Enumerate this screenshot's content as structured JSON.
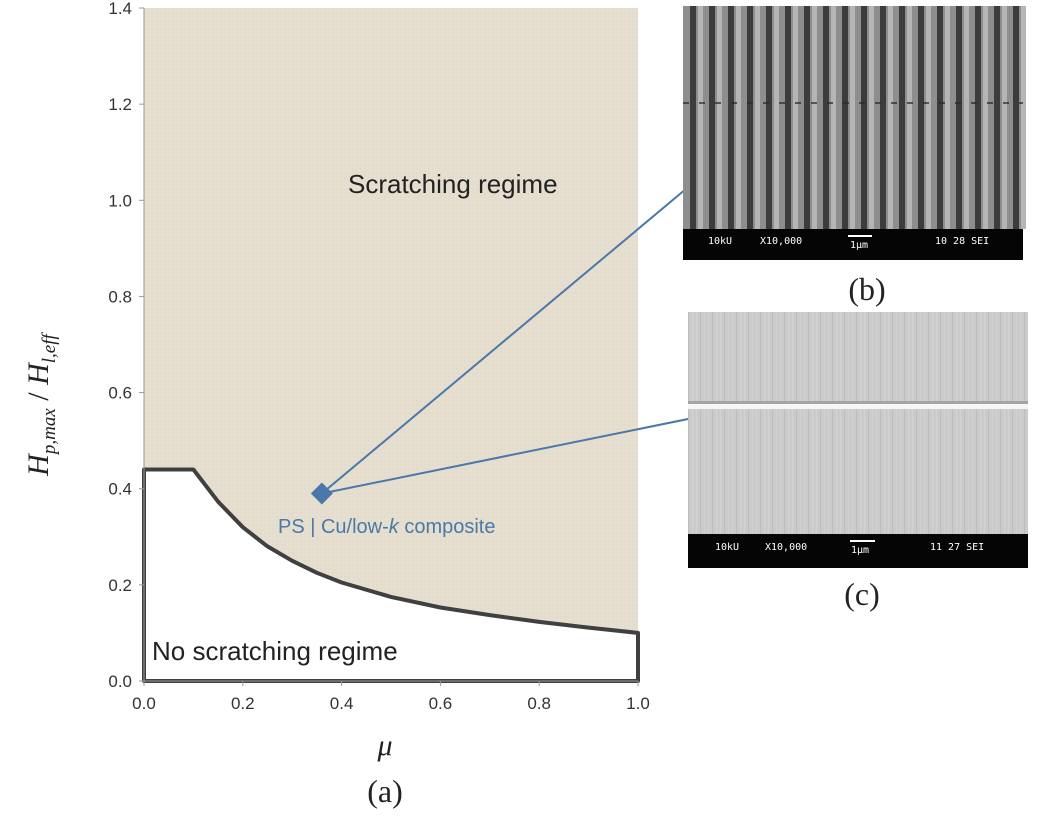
{
  "chart_data": {
    "type": "area",
    "xlabel_symbol": "μ",
    "ylabel_main": "H",
    "ylabel_sub1": "p,max",
    "ylabel_sep": " / ",
    "ylabel_sub2": "l,eff",
    "xlim": [
      0.0,
      1.0
    ],
    "ylim": [
      0.0,
      1.4
    ],
    "x_ticks": [
      "0.0",
      "0.2",
      "0.4",
      "0.6",
      "0.8",
      "1.0"
    ],
    "y_ticks": [
      "0.0",
      "0.2",
      "0.4",
      "0.6",
      "0.8",
      "1.0",
      "1.2",
      "1.4"
    ],
    "boundary": {
      "x": [
        0.0,
        0.1,
        0.15,
        0.2,
        0.25,
        0.3,
        0.35,
        0.4,
        0.5,
        0.6,
        0.7,
        0.8,
        0.9,
        1.0
      ],
      "y": [
        0.44,
        0.44,
        0.373,
        0.32,
        0.28,
        0.25,
        0.225,
        0.205,
        0.175,
        0.153,
        0.137,
        0.123,
        0.111,
        0.1
      ]
    },
    "regions": {
      "above": "Scratching regime",
      "below": "No scratching regime"
    },
    "point": {
      "x": 0.36,
      "y": 0.39,
      "label_prefix": "PS | Cu/low-",
      "label_k": "k",
      "label_suffix": " composite"
    },
    "panel_label": "(a)"
  },
  "insets": [
    {
      "panel_label": "(b)",
      "sem_bar": {
        "voltage": "10kU",
        "magnification": "X10,000",
        "scale": "1μm",
        "code": "10 28 SEI"
      }
    },
    {
      "panel_label": "(c)",
      "sem_bar": {
        "voltage": "10kU",
        "magnification": "X10,000",
        "scale": "1μm",
        "code": "11 27 SEI"
      }
    }
  ],
  "colors": {
    "scratch_region": "#e6dfcf",
    "boundary": "#404040",
    "marker": "#4a78a8",
    "arrow": "#4a78a8",
    "axis": "#999999"
  }
}
